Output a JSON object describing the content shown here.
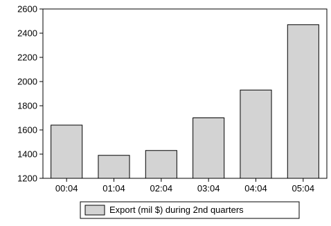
{
  "chart_data": {
    "type": "bar",
    "categories": [
      "00:04",
      "01:04",
      "02:04",
      "03:04",
      "04:04",
      "05:04"
    ],
    "series": [
      {
        "name": "Export (mil $) during 2nd quarters",
        "values": [
          1640,
          1390,
          1430,
          1700,
          1930,
          2470
        ]
      }
    ],
    "ylim": [
      1200,
      2600
    ],
    "yticks": [
      1200,
      1400,
      1600,
      1800,
      2000,
      2200,
      2400,
      2600
    ],
    "grid": false,
    "legend_position": "bottom-center",
    "colors": {
      "bar_fill": "#d3d3d3",
      "bar_stroke": "#000000",
      "axis": "#000000"
    }
  }
}
